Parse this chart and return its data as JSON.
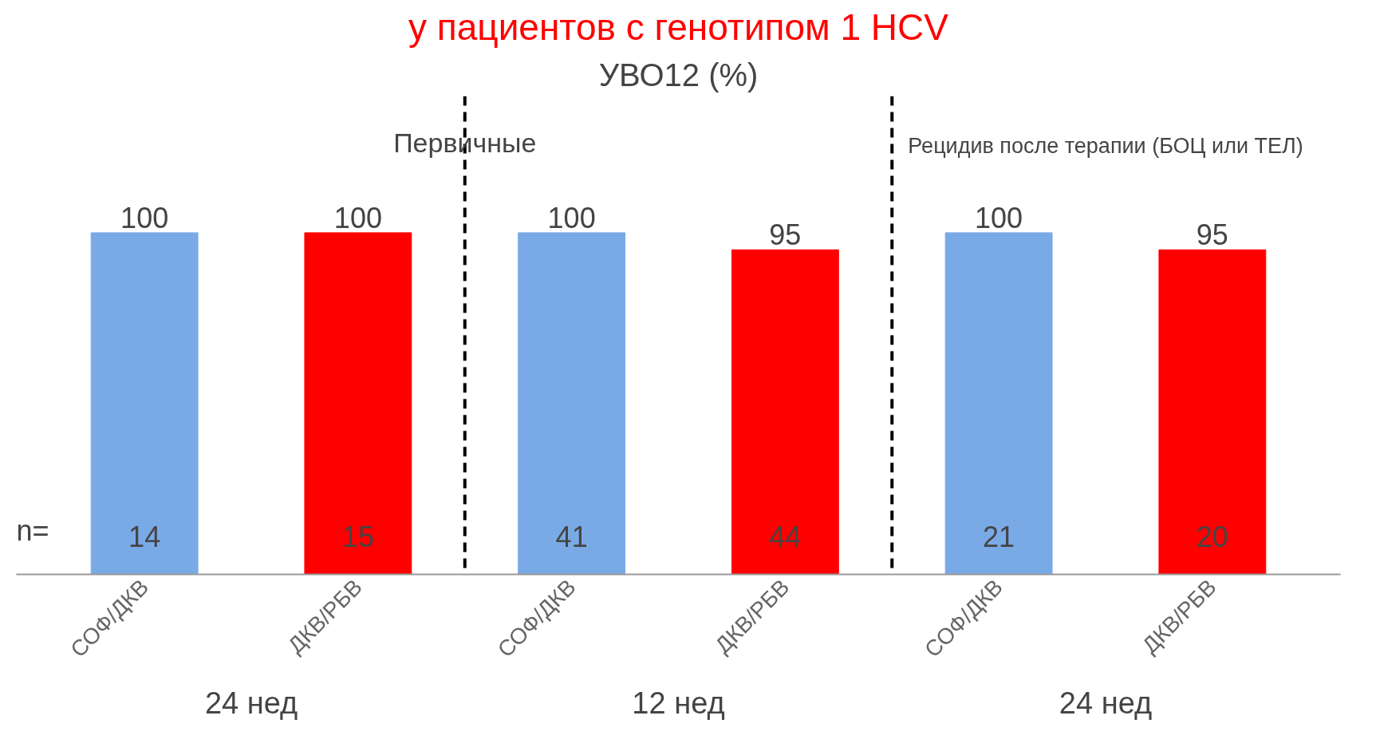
{
  "chart_data": {
    "type": "bar",
    "title": "у пациентов с генотипом 1 HCV",
    "subtitle": "УВО12 (%)",
    "categories": [
      "СОФ/ДКВ",
      "ДКВ/РБВ",
      "СОФ/ДКВ",
      "ДКВ/РБВ",
      "СОФ/ДКВ",
      "ДКВ/РБВ"
    ],
    "values": [
      100,
      100,
      100,
      95,
      100,
      95
    ],
    "colors": [
      "#7aaae6",
      "#ff0000",
      "#7aaae6",
      "#ff0000",
      "#7aaae6",
      "#ff0000"
    ],
    "data_labels": true,
    "ylim": [
      0,
      140
    ],
    "tick_labels": "x",
    "grid": false,
    "annotations": [
      "n=",
      "14",
      "15",
      "41",
      "44",
      "21",
      "20",
      "Первичные",
      "Рецидив после терапии (БОЦ или ТЕЛ)",
      "24 нед",
      "12 нед",
      "24 нед"
    ]
  }
}
